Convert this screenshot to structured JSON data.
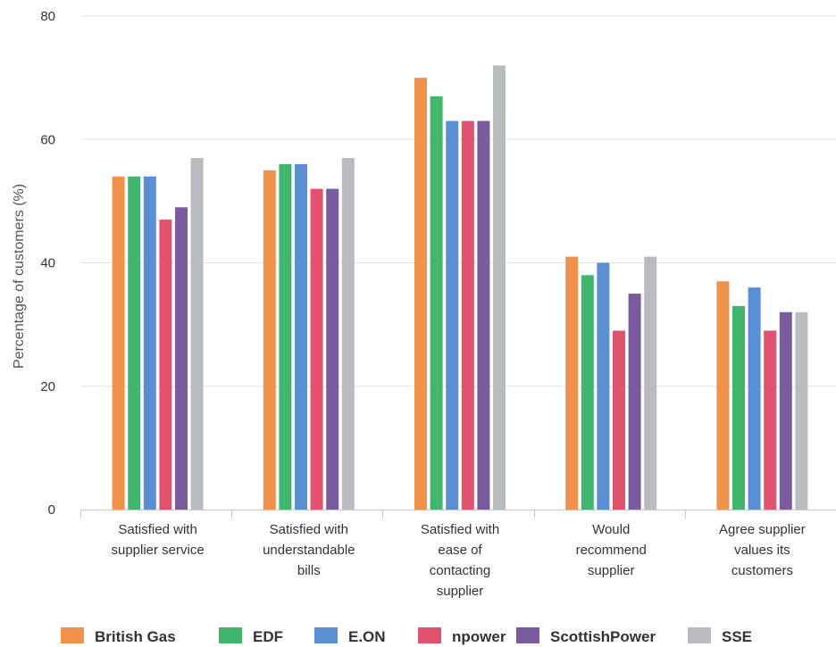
{
  "chart_data": {
    "type": "bar",
    "title": "",
    "xlabel": "",
    "ylabel": "Percentage of customers (%)",
    "ylim": [
      0,
      80
    ],
    "yticks": [
      0,
      20,
      40,
      60,
      80
    ],
    "grid": true,
    "legend_position": "bottom",
    "categories": [
      [
        "Satisfied with",
        "supplier service"
      ],
      [
        "Satisfied with",
        "understandable",
        "bills"
      ],
      [
        "Satisfied with",
        "ease of",
        "contacting",
        "supplier"
      ],
      [
        "Would",
        "recommend",
        "supplier"
      ],
      [
        "Agree supplier",
        "values its",
        "customers"
      ]
    ],
    "series": [
      {
        "name": "British Gas",
        "color": "#f0914c",
        "values": [
          54,
          55,
          70,
          41,
          37
        ]
      },
      {
        "name": "EDF",
        "color": "#3fb66c",
        "values": [
          54,
          56,
          67,
          38,
          33
        ]
      },
      {
        "name": "E.ON",
        "color": "#5b8fd3",
        "values": [
          54,
          56,
          63,
          40,
          36
        ]
      },
      {
        "name": "npower",
        "color": "#e0526e",
        "values": [
          47,
          52,
          63,
          29,
          29
        ]
      },
      {
        "name": "ScottishPower",
        "color": "#7a5b9e",
        "values": [
          49,
          52,
          63,
          35,
          32
        ]
      },
      {
        "name": "SSE",
        "color": "#b8bcc0",
        "values": [
          57,
          57,
          72,
          41,
          32
        ]
      }
    ]
  }
}
